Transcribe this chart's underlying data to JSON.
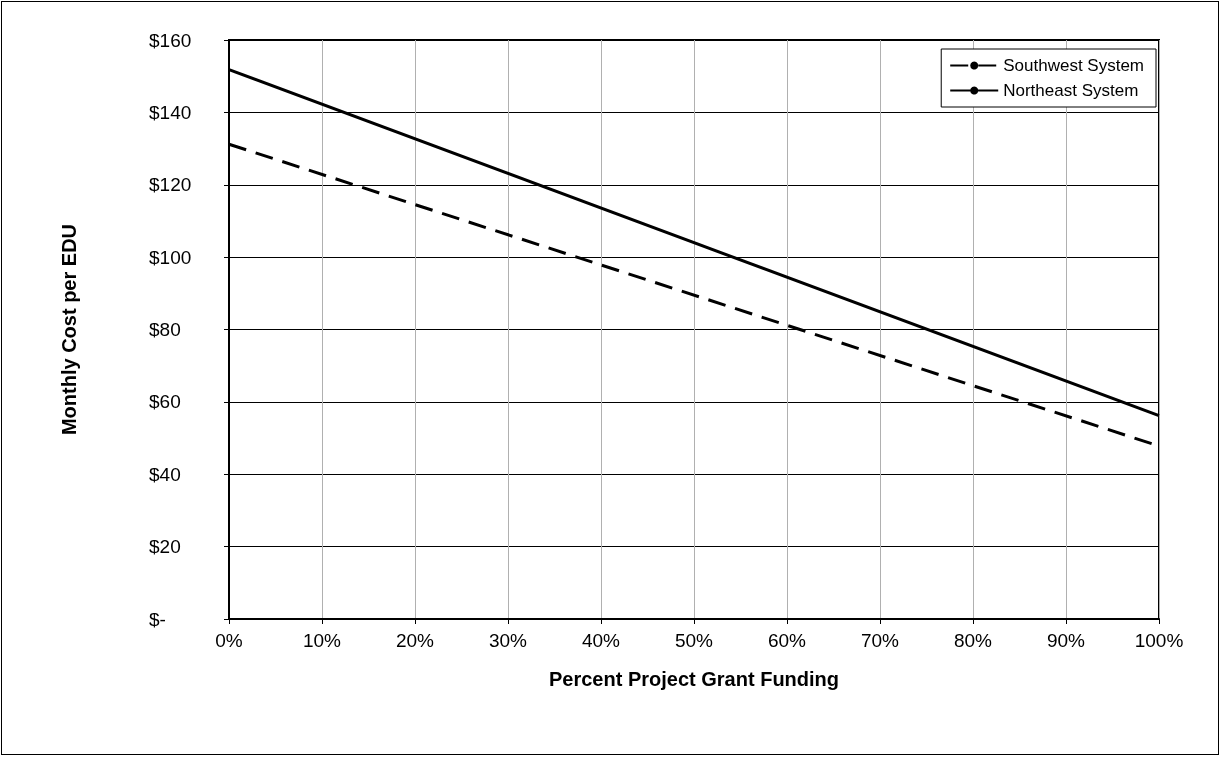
{
  "chart_data": {
    "type": "line",
    "xlabel": "Percent Project Grant Funding",
    "ylabel": "Monthly Cost per EDU",
    "x": [
      0,
      100
    ],
    "series": [
      {
        "name": "Southwest System",
        "color": "#000000",
        "values": [
          131.2,
          47.8
        ],
        "line_style": "dashed"
      },
      {
        "name": "Northeast System",
        "color": "#000000",
        "values": [
          151.8,
          56.2
        ],
        "line_style": "solid"
      }
    ],
    "xlim": [
      0,
      100
    ],
    "xticks": [
      {
        "value": 0,
        "label": "0%"
      },
      {
        "value": 10,
        "label": "10%"
      },
      {
        "value": 20,
        "label": "20%"
      },
      {
        "value": 30,
        "label": "30%"
      },
      {
        "value": 40,
        "label": "40%"
      },
      {
        "value": 50,
        "label": "50%"
      },
      {
        "value": 60,
        "label": "60%"
      },
      {
        "value": 70,
        "label": "70%"
      },
      {
        "value": 80,
        "label": "80%"
      },
      {
        "value": 90,
        "label": "90%"
      },
      {
        "value": 100,
        "label": "100%"
      }
    ],
    "ylim": [
      0,
      160
    ],
    "yticks": [
      {
        "value": 0,
        "label": "$-"
      },
      {
        "value": 20,
        "label": "$20"
      },
      {
        "value": 40,
        "label": "$40"
      },
      {
        "value": 60,
        "label": "$60"
      },
      {
        "value": 80,
        "label": "$80"
      },
      {
        "value": 100,
        "label": "$100"
      },
      {
        "value": 120,
        "label": "$120"
      },
      {
        "value": 140,
        "label": "$140"
      },
      {
        "value": 160,
        "label": "$160"
      }
    ],
    "grid": true,
    "legend": "top right",
    "marker": "none"
  }
}
